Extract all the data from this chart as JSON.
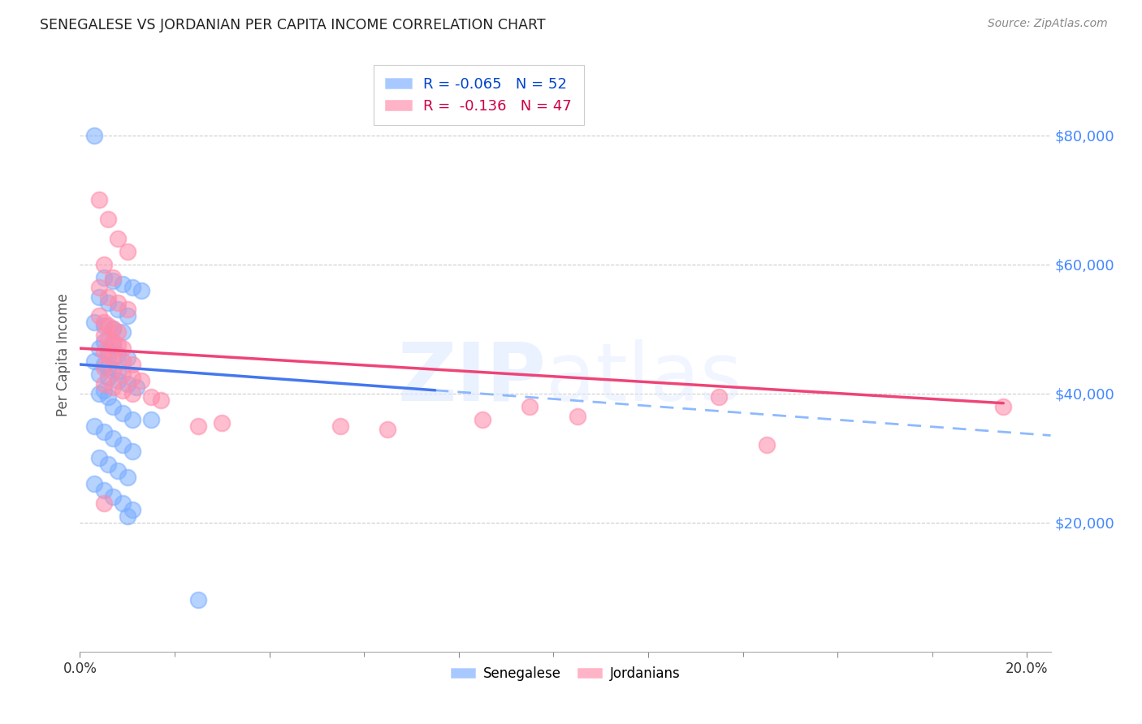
{
  "title": "SENEGALESE VS JORDANIAN PER CAPITA INCOME CORRELATION CHART",
  "source": "Source: ZipAtlas.com",
  "ylabel": "Per Capita Income",
  "yticks": [
    20000,
    40000,
    60000,
    80000
  ],
  "ytick_labels": [
    "$20,000",
    "$40,000",
    "$60,000",
    "$80,000"
  ],
  "xlim": [
    0.0,
    20.5
  ],
  "ylim": [
    0,
    92000
  ],
  "watermark_zip": "ZIP",
  "watermark_atlas": "atlas",
  "senegalese_color": "#7aadff",
  "jordanian_color": "#ff8aaa",
  "trend_blue_color": "#4477ee",
  "trend_pink_color": "#ee4477",
  "trend_blue_dash_color": "#7aadff",
  "legend1_label": "R = -0.065   N = 52",
  "legend2_label": "R =  -0.136   N = 47",
  "bottom_label1": "Senegalese",
  "bottom_label2": "Jordanians",
  "senegalese_x": [
    0.3,
    0.5,
    0.7,
    0.9,
    1.1,
    1.3,
    0.4,
    0.6,
    0.8,
    1.0,
    0.3,
    0.5,
    0.7,
    0.9,
    0.5,
    0.7,
    0.4,
    0.6,
    0.8,
    1.0,
    0.3,
    0.5,
    0.6,
    0.8,
    0.4,
    0.6,
    0.8,
    1.0,
    1.2,
    0.5,
    0.4,
    0.6,
    0.7,
    0.9,
    1.1,
    0.3,
    0.5,
    0.7,
    0.9,
    1.1,
    0.4,
    0.6,
    0.8,
    1.0,
    1.5,
    0.3,
    0.5,
    0.7,
    0.9,
    1.1,
    1.0,
    2.5
  ],
  "senegalese_y": [
    80000,
    58000,
    57500,
    57000,
    56500,
    56000,
    55000,
    54000,
    53000,
    52000,
    51000,
    50500,
    50000,
    49500,
    48000,
    47500,
    47000,
    46500,
    46000,
    45500,
    45000,
    44500,
    44000,
    43500,
    43000,
    42500,
    42000,
    41500,
    41000,
    40500,
    40000,
    39500,
    38000,
    37000,
    36000,
    35000,
    34000,
    33000,
    32000,
    31000,
    30000,
    29000,
    28000,
    27000,
    36000,
    26000,
    25000,
    24000,
    23000,
    22000,
    21000,
    8000
  ],
  "jordanian_x": [
    0.4,
    0.6,
    0.8,
    1.0,
    0.5,
    0.7,
    0.4,
    0.6,
    0.8,
    1.0,
    0.4,
    0.5,
    0.6,
    0.7,
    0.8,
    0.5,
    0.6,
    0.7,
    0.8,
    0.9,
    0.5,
    0.6,
    0.7,
    0.9,
    1.1,
    0.5,
    0.7,
    0.9,
    1.1,
    1.3,
    0.5,
    0.7,
    0.9,
    1.1,
    1.5,
    1.7,
    2.5,
    3.0,
    5.5,
    6.5,
    8.5,
    9.5,
    10.5,
    13.5,
    14.5,
    19.5,
    0.5
  ],
  "jordanian_y": [
    70000,
    67000,
    64000,
    62000,
    60000,
    58000,
    56500,
    55000,
    54000,
    53000,
    52000,
    51000,
    50500,
    50000,
    49500,
    49000,
    48500,
    48000,
    47500,
    47000,
    46500,
    46000,
    45500,
    45000,
    44500,
    44000,
    43500,
    43000,
    42500,
    42000,
    41500,
    41000,
    40500,
    40000,
    39500,
    39000,
    35000,
    35500,
    35000,
    34500,
    36000,
    38000,
    36500,
    39500,
    32000,
    38000,
    23000
  ],
  "trend_blue_x0": 0.0,
  "trend_blue_y0": 44500,
  "trend_blue_x1": 7.5,
  "trend_blue_y1": 40500,
  "trend_blue_dash_x0": 7.5,
  "trend_blue_dash_y0": 40500,
  "trend_blue_dash_x1": 20.5,
  "trend_blue_dash_y1": 33500,
  "trend_pink_x0": 0.0,
  "trend_pink_y0": 47000,
  "trend_pink_x1": 19.5,
  "trend_pink_y1": 38500
}
